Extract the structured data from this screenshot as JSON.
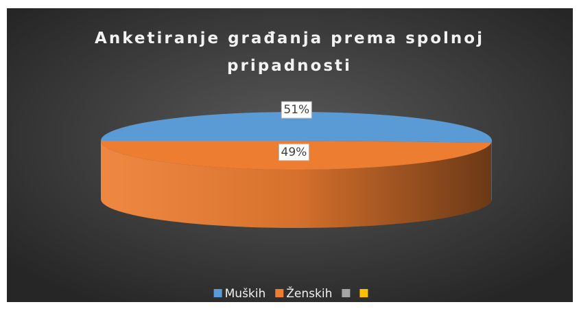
{
  "chart_data": {
    "type": "pie",
    "title": "Anketiranje građanja prema spolnoj pripadnosti",
    "categories": [
      "Muških",
      "Ženskih",
      null,
      null
    ],
    "values": [
      51,
      49,
      0,
      0
    ],
    "value_labels": [
      "51%",
      "49%",
      null,
      null
    ],
    "colors": [
      "#5b9bd5",
      "#ed7d31",
      "#a5a5a5",
      "#ffc000"
    ],
    "legend": "bottom"
  }
}
